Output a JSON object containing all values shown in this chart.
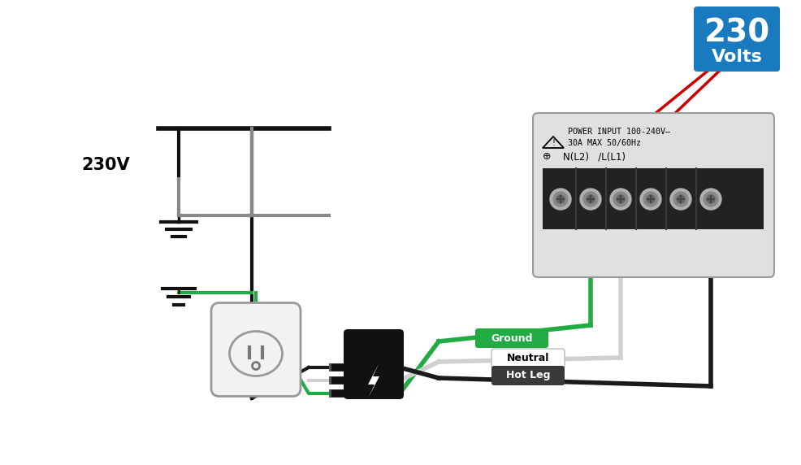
{
  "bg_color": "#ffffff",
  "voltage_box_color": "#1a7abf",
  "voltage_text": "230",
  "volts_text": "Volts",
  "label_230v": "230V",
  "ground_label": "Ground",
  "neutral_label": "Neutral",
  "hotleg_label": "Hot Leg",
  "power_input_line1": "POWER INPUT 100-240V–",
  "power_input_line2": "30A MAX 50/60Hz",
  "terminal_label_row": "    N(L2)  /L(L1)",
  "wire_green": "#22aa44",
  "wire_black": "#1a1a1a",
  "wire_white": "#d0d0d0",
  "wire_red": "#cc0000",
  "wire_gray": "#888888",
  "terminal_box_fill": "#e0e0e0",
  "terminal_block_fill": "#222222",
  "schematic_black": "#111111",
  "schematic_gray": "#888888"
}
